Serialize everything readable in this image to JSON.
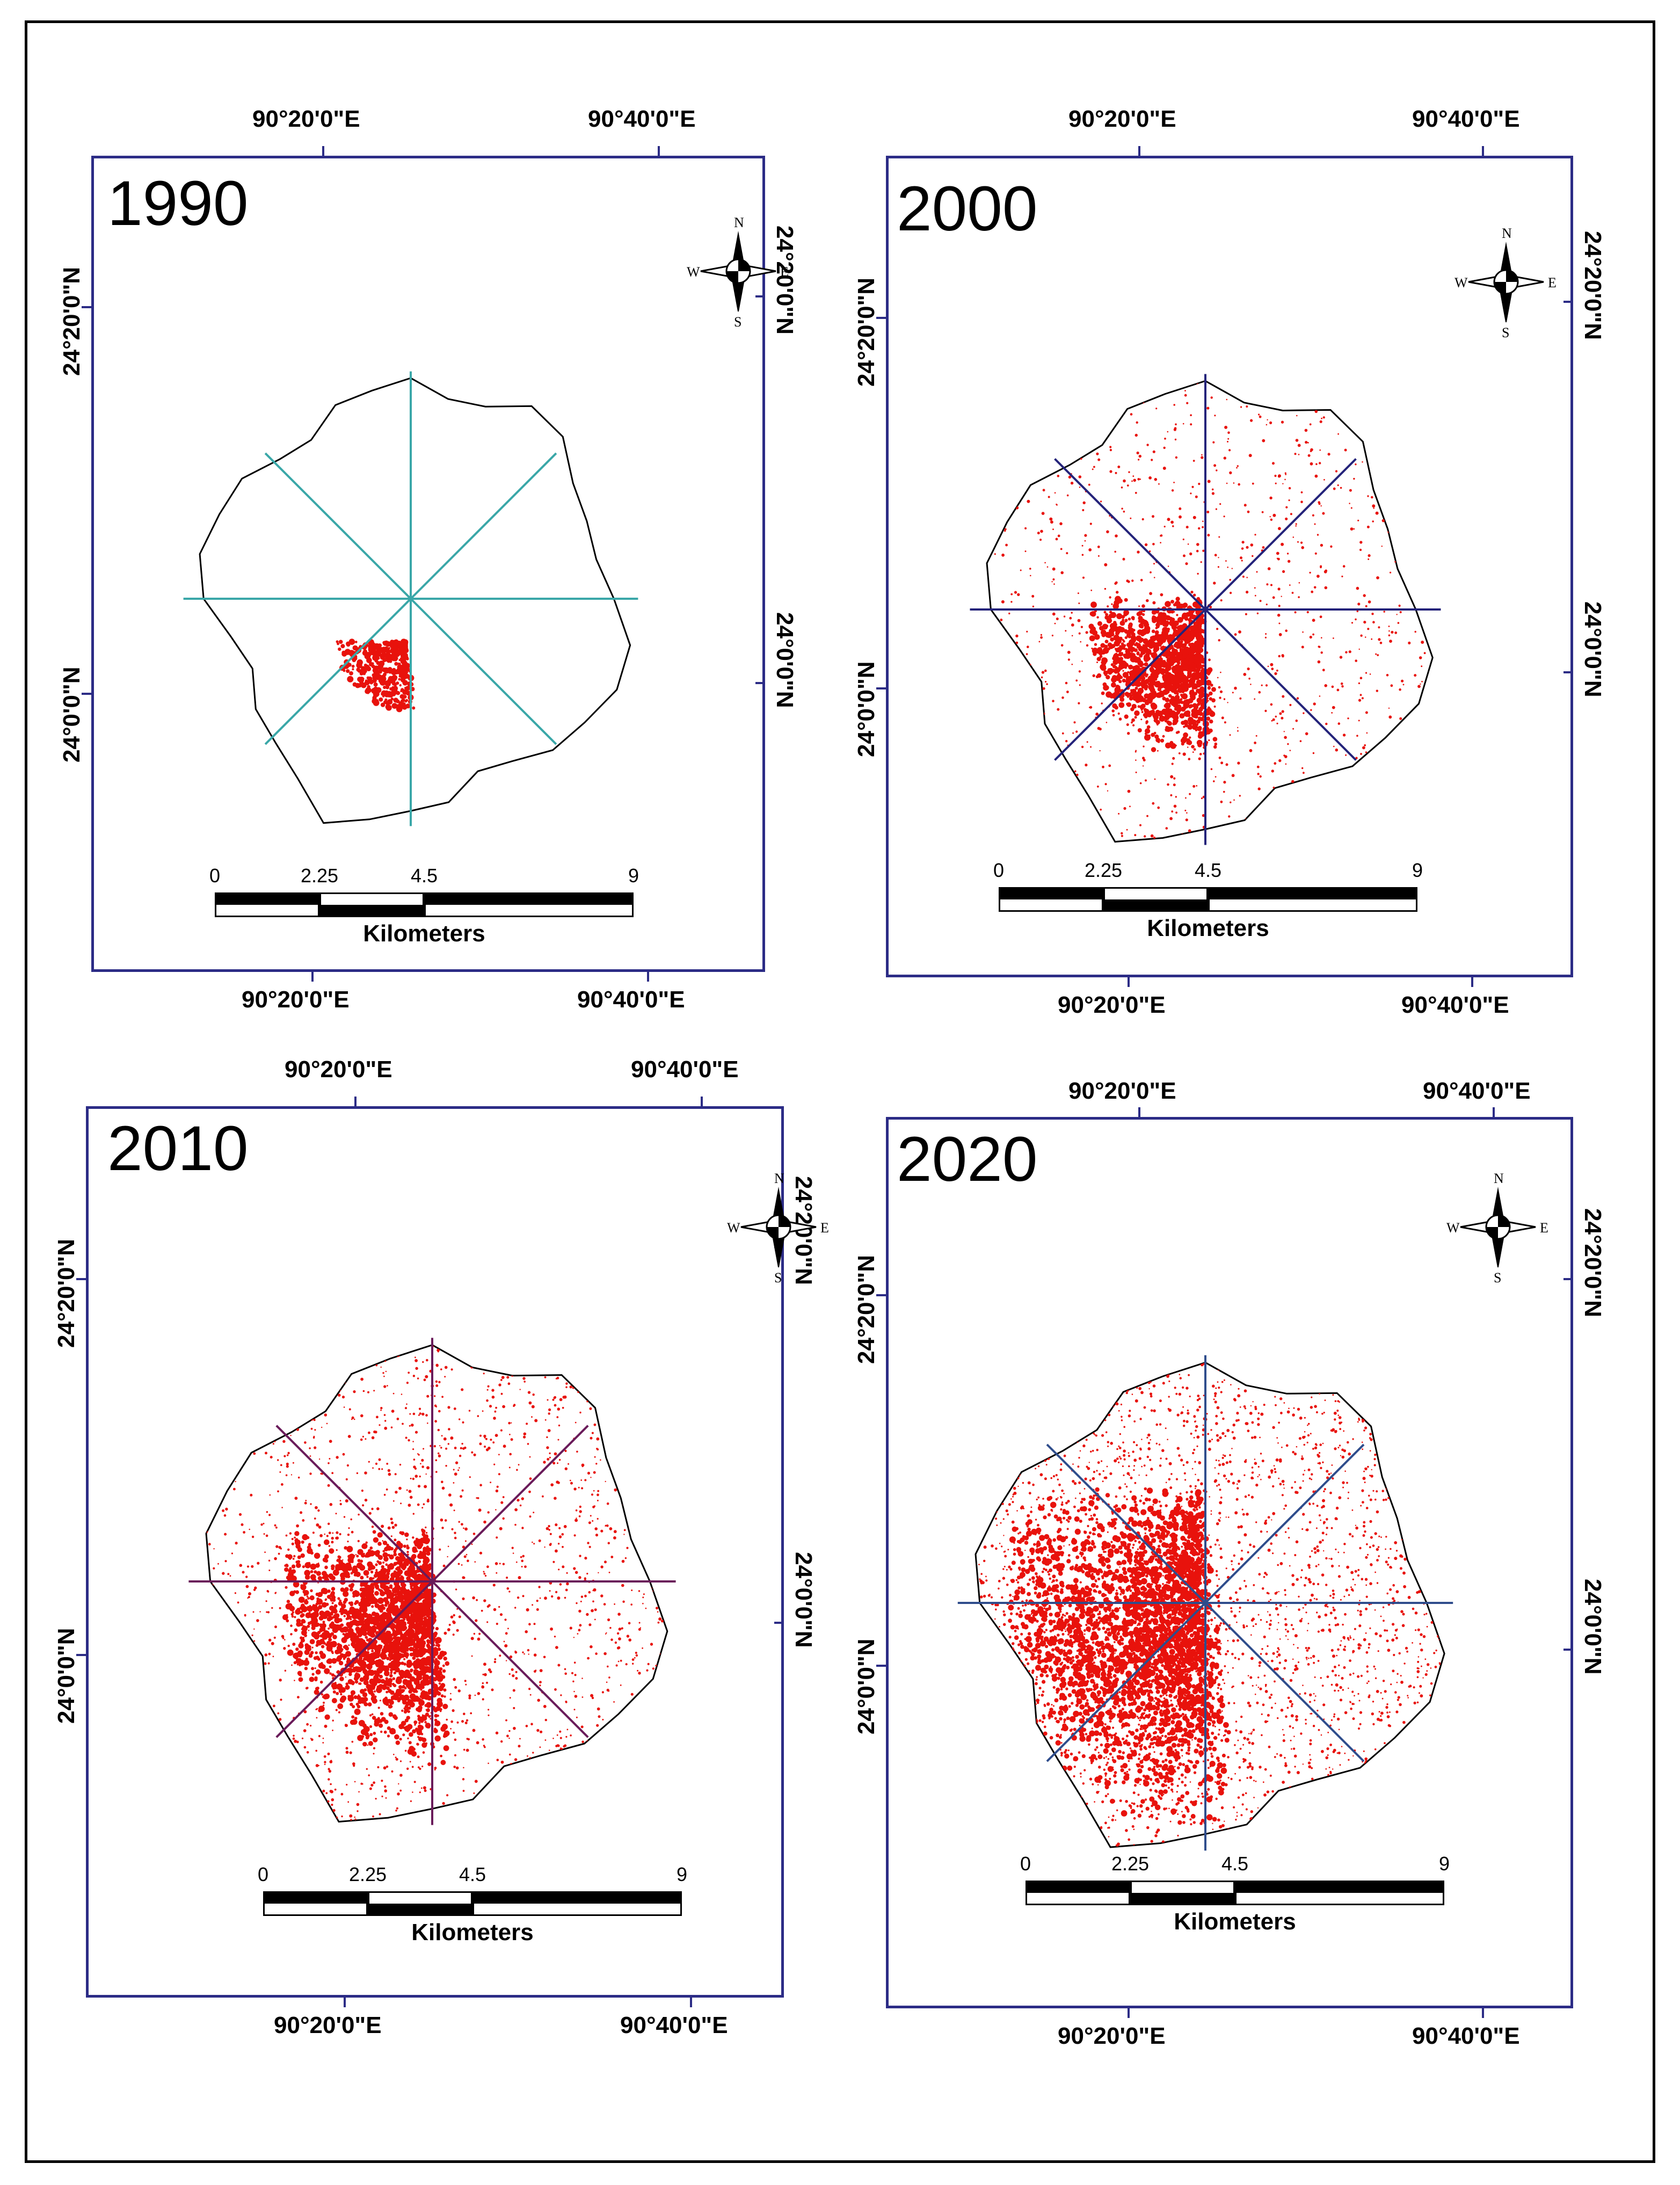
{
  "panels": [
    {
      "year": "1990",
      "lon_top": [
        "90°20'0\"E",
        "90°40'0\"E"
      ],
      "lon_bottom": [
        "90°20'0\"E",
        "90°40'0\"E"
      ],
      "lat_left": [
        "24°20'0\"N",
        "24°0'0\"N"
      ],
      "lat_right": [
        "24°20'0\"N",
        "24°0'0\"N"
      ],
      "line_color": "#3aa7a8",
      "urban_density": 0.0
    },
    {
      "year": "2000",
      "lon_top": [
        "90°20'0\"E",
        "90°40'0\"E"
      ],
      "lon_bottom": [
        "90°20'0\"E",
        "90°40'0\"E"
      ],
      "lat_left": [
        "24°20'0\"N",
        "24°0'0\"N"
      ],
      "lat_right": [
        "24°20'0\"N",
        "24°0'0\"N"
      ],
      "line_color": "#24237a",
      "urban_density": 0.35
    },
    {
      "year": "2010",
      "lon_top": [
        "90°20'0\"E",
        "90°40'0\"E"
      ],
      "lon_bottom": [
        "90°20'0\"E",
        "90°40'0\"E"
      ],
      "lat_left": [
        "24°20'0\"N",
        "24°0'0\"N"
      ],
      "lat_right": [
        "24°20'0\"N",
        "24°0'0\"N"
      ],
      "line_color": "#6a1b5a",
      "urban_density": 0.6
    },
    {
      "year": "2020",
      "lon_top": [
        "90°20'0\"E",
        "90°40'0\"E"
      ],
      "lon_bottom": [
        "90°20'0\"E",
        "90°40'0\"E"
      ],
      "lat_left": [
        "24°20'0\"N",
        "24°0'0\"N"
      ],
      "lat_right": [
        "24°20'0\"N",
        "24°0'0\"N"
      ],
      "line_color": "#2f4d8c",
      "urban_density": 1.0
    }
  ],
  "compass": {
    "n": "N",
    "s": "S",
    "e": "E",
    "w": "W"
  },
  "scale": {
    "ticks": [
      "0",
      "2.25",
      "4.5",
      "9"
    ],
    "unit": "Kilometers"
  },
  "colors": {
    "frame": "#2c2c86",
    "urban": "#e8120c",
    "boundary": "#000000"
  }
}
